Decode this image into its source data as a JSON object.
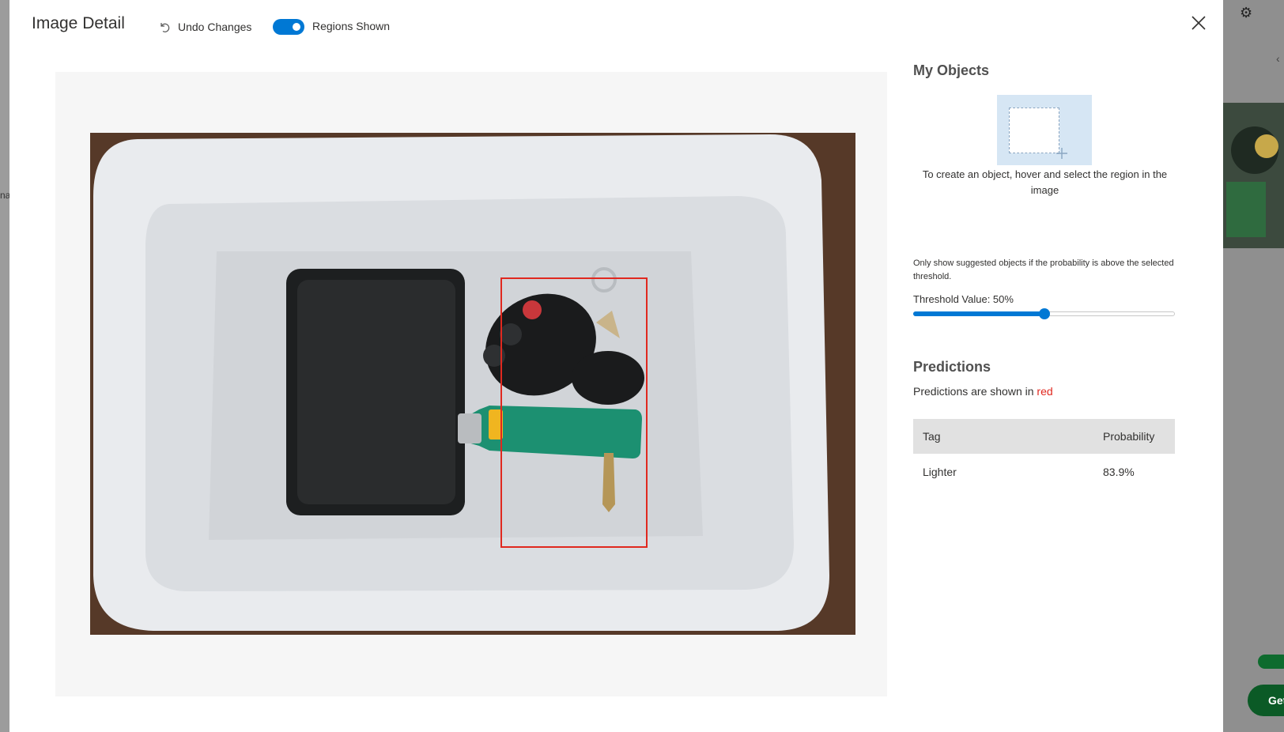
{
  "header": {
    "title": "Image Detail",
    "undo_label": "Undo Changes",
    "regions_toggle_label": "Regions Shown",
    "regions_toggle_on": true
  },
  "panel": {
    "my_objects_heading": "My Objects",
    "create_hint": "To create an object, hover and select the region in the image",
    "threshold_hint": "Only show suggested objects if the probability is above the selected threshold.",
    "threshold_label": "Threshold Value: 50%",
    "threshold_value": 50,
    "predictions_heading": "Predictions",
    "predictions_note_prefix": "Predictions are shown in",
    "predictions_note_color_word": "red",
    "table": {
      "headers": {
        "tag": "Tag",
        "probability": "Probability"
      },
      "rows": [
        {
          "tag": "Lighter",
          "probability": "83.9%"
        }
      ]
    }
  },
  "background": {
    "left_text": "na",
    "right_button_text": "Get"
  },
  "colors": {
    "accent": "#0078d4",
    "prediction": "#e0281f",
    "table_header": "#e1e1e1",
    "draw_tile": "#d6e6f4"
  },
  "icons": [
    "undo-icon",
    "close-icon",
    "gear-icon",
    "plus-icon",
    "chevron-left-icon"
  ]
}
